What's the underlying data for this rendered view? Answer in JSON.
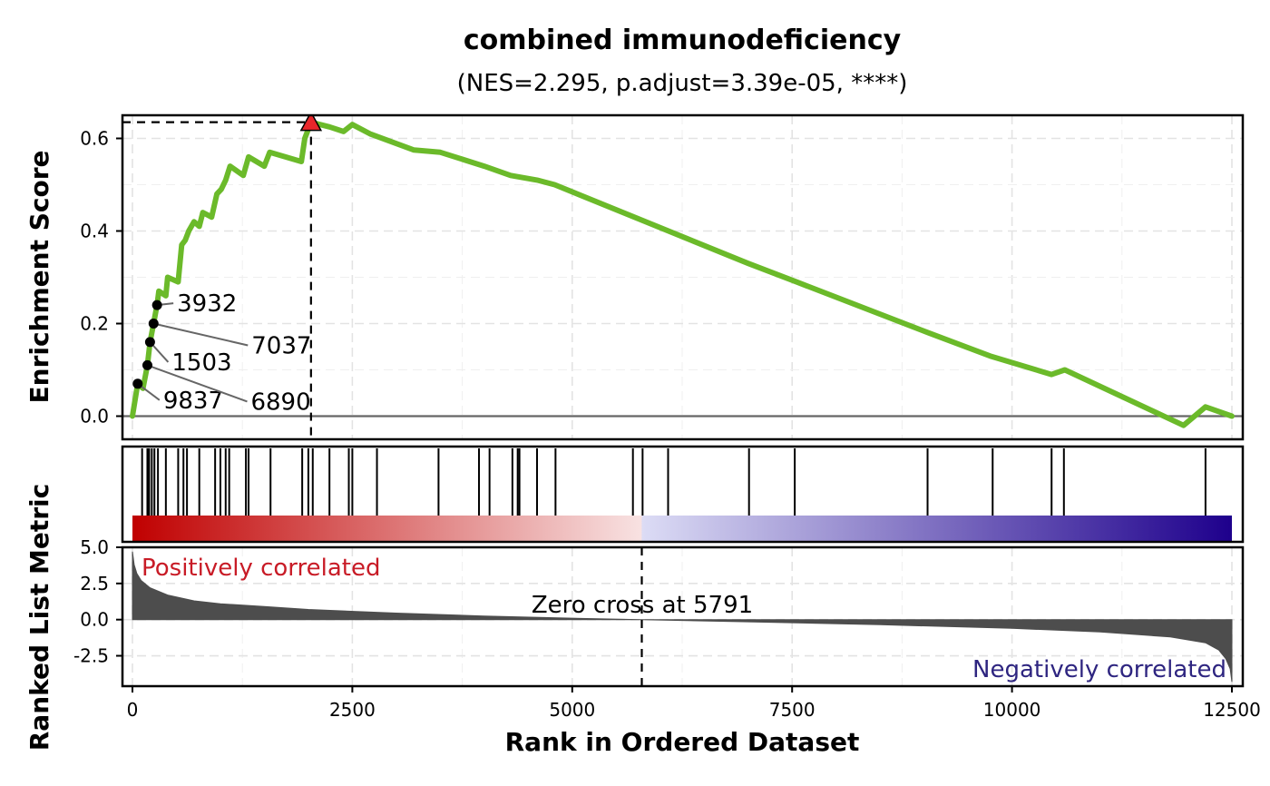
{
  "chart_data": {
    "type": "line",
    "title": "combined immunodeficiency",
    "subtitle": "(NES=2.295, p.adjust=3.39e-05, ****)",
    "xlabel": "Rank in Ordered Dataset",
    "xlim": [
      0,
      12500
    ],
    "x_ticks": [
      "0",
      "2500",
      "5000",
      "7500",
      "10000",
      "12500"
    ],
    "grid": true,
    "panels": {
      "running_score": {
        "ylabel": "Enrichment Score",
        "ylim": [
          -0.05,
          0.65
        ],
        "y_ticks": [
          "0.0",
          "0.2",
          "0.4",
          "0.6"
        ],
        "line_color": "#6BBA2A",
        "peak": {
          "x": 2030,
          "y": 0.635,
          "marker_color": "#E8262A"
        },
        "series": [
          {
            "x": 0,
            "y": 0.0
          },
          {
            "x": 60,
            "y": 0.07
          },
          {
            "x": 120,
            "y": 0.06
          },
          {
            "x": 170,
            "y": 0.11
          },
          {
            "x": 200,
            "y": 0.16
          },
          {
            "x": 240,
            "y": 0.2
          },
          {
            "x": 280,
            "y": 0.24
          },
          {
            "x": 300,
            "y": 0.27
          },
          {
            "x": 380,
            "y": 0.26
          },
          {
            "x": 400,
            "y": 0.3
          },
          {
            "x": 520,
            "y": 0.29
          },
          {
            "x": 560,
            "y": 0.37
          },
          {
            "x": 600,
            "y": 0.38
          },
          {
            "x": 640,
            "y": 0.4
          },
          {
            "x": 700,
            "y": 0.42
          },
          {
            "x": 760,
            "y": 0.41
          },
          {
            "x": 800,
            "y": 0.44
          },
          {
            "x": 900,
            "y": 0.43
          },
          {
            "x": 960,
            "y": 0.48
          },
          {
            "x": 1010,
            "y": 0.49
          },
          {
            "x": 1060,
            "y": 0.51
          },
          {
            "x": 1110,
            "y": 0.54
          },
          {
            "x": 1260,
            "y": 0.52
          },
          {
            "x": 1320,
            "y": 0.56
          },
          {
            "x": 1500,
            "y": 0.54
          },
          {
            "x": 1560,
            "y": 0.57
          },
          {
            "x": 1920,
            "y": 0.55
          },
          {
            "x": 1960,
            "y": 0.6
          },
          {
            "x": 2030,
            "y": 0.635
          },
          {
            "x": 2240,
            "y": 0.625
          },
          {
            "x": 2400,
            "y": 0.615
          },
          {
            "x": 2500,
            "y": 0.63
          },
          {
            "x": 2700,
            "y": 0.61
          },
          {
            "x": 3200,
            "y": 0.575
          },
          {
            "x": 3500,
            "y": 0.57
          },
          {
            "x": 4000,
            "y": 0.54
          },
          {
            "x": 4300,
            "y": 0.52
          },
          {
            "x": 4600,
            "y": 0.51
          },
          {
            "x": 4800,
            "y": 0.5
          },
          {
            "x": 7000,
            "y": 0.33
          },
          {
            "x": 7550,
            "y": 0.29
          },
          {
            "x": 9050,
            "y": 0.18
          },
          {
            "x": 9750,
            "y": 0.13
          },
          {
            "x": 10450,
            "y": 0.09
          },
          {
            "x": 10600,
            "y": 0.1
          },
          {
            "x": 11950,
            "y": -0.02
          },
          {
            "x": 12200,
            "y": 0.02
          },
          {
            "x": 12500,
            "y": 0.0
          }
        ],
        "labeled_genes": [
          {
            "label": "9837",
            "x": 60,
            "y": 0.07
          },
          {
            "label": "6890",
            "x": 170,
            "y": 0.11
          },
          {
            "label": "1503",
            "x": 200,
            "y": 0.16
          },
          {
            "label": "7037",
            "x": 240,
            "y": 0.2
          },
          {
            "label": "3932",
            "x": 280,
            "y": 0.24
          }
        ]
      },
      "gene_hits": {
        "positions": [
          110,
          170,
          190,
          220,
          250,
          290,
          380,
          520,
          580,
          620,
          760,
          940,
          1000,
          1060,
          1100,
          1290,
          1320,
          1570,
          1930,
          2000,
          2050,
          2240,
          2460,
          2500,
          2780,
          3480,
          3940,
          4060,
          4320,
          4380,
          4400,
          4600,
          4810,
          5690,
          5800,
          6090,
          7010,
          7530,
          9040,
          9780,
          10450,
          10590,
          12200
        ],
        "heatmap_positive_color": "#C00000",
        "heatmap_negative_color": "#1E008C"
      },
      "ranked_list_metric": {
        "ylabel": "Ranked List Metric",
        "ylim": [
          -4.6,
          5.0
        ],
        "y_ticks": [
          "5.0",
          "2.5",
          "0.0",
          "-2.5"
        ],
        "fill_color": "#4D4D4D",
        "zero_cross": 5791,
        "zero_cross_label": "Zero cross at 5791",
        "positive_label": "Positively correlated",
        "negative_label": "Negatively correlated",
        "positive_color": "#C81B26",
        "negative_color": "#2E2580",
        "series": [
          {
            "x": 0,
            "y": 4.7
          },
          {
            "x": 20,
            "y": 3.8
          },
          {
            "x": 50,
            "y": 3.2
          },
          {
            "x": 100,
            "y": 2.7
          },
          {
            "x": 200,
            "y": 2.2
          },
          {
            "x": 400,
            "y": 1.7
          },
          {
            "x": 700,
            "y": 1.3
          },
          {
            "x": 1000,
            "y": 1.1
          },
          {
            "x": 1500,
            "y": 0.9
          },
          {
            "x": 2000,
            "y": 0.7
          },
          {
            "x": 3000,
            "y": 0.45
          },
          {
            "x": 4000,
            "y": 0.25
          },
          {
            "x": 5000,
            "y": 0.1
          },
          {
            "x": 5791,
            "y": 0.0
          },
          {
            "x": 7000,
            "y": -0.15
          },
          {
            "x": 8500,
            "y": -0.35
          },
          {
            "x": 10000,
            "y": -0.6
          },
          {
            "x": 11000,
            "y": -0.85
          },
          {
            "x": 11800,
            "y": -1.2
          },
          {
            "x": 12200,
            "y": -1.6
          },
          {
            "x": 12350,
            "y": -2.1
          },
          {
            "x": 12430,
            "y": -2.7
          },
          {
            "x": 12480,
            "y": -3.4
          },
          {
            "x": 12500,
            "y": -4.3
          }
        ]
      }
    }
  }
}
